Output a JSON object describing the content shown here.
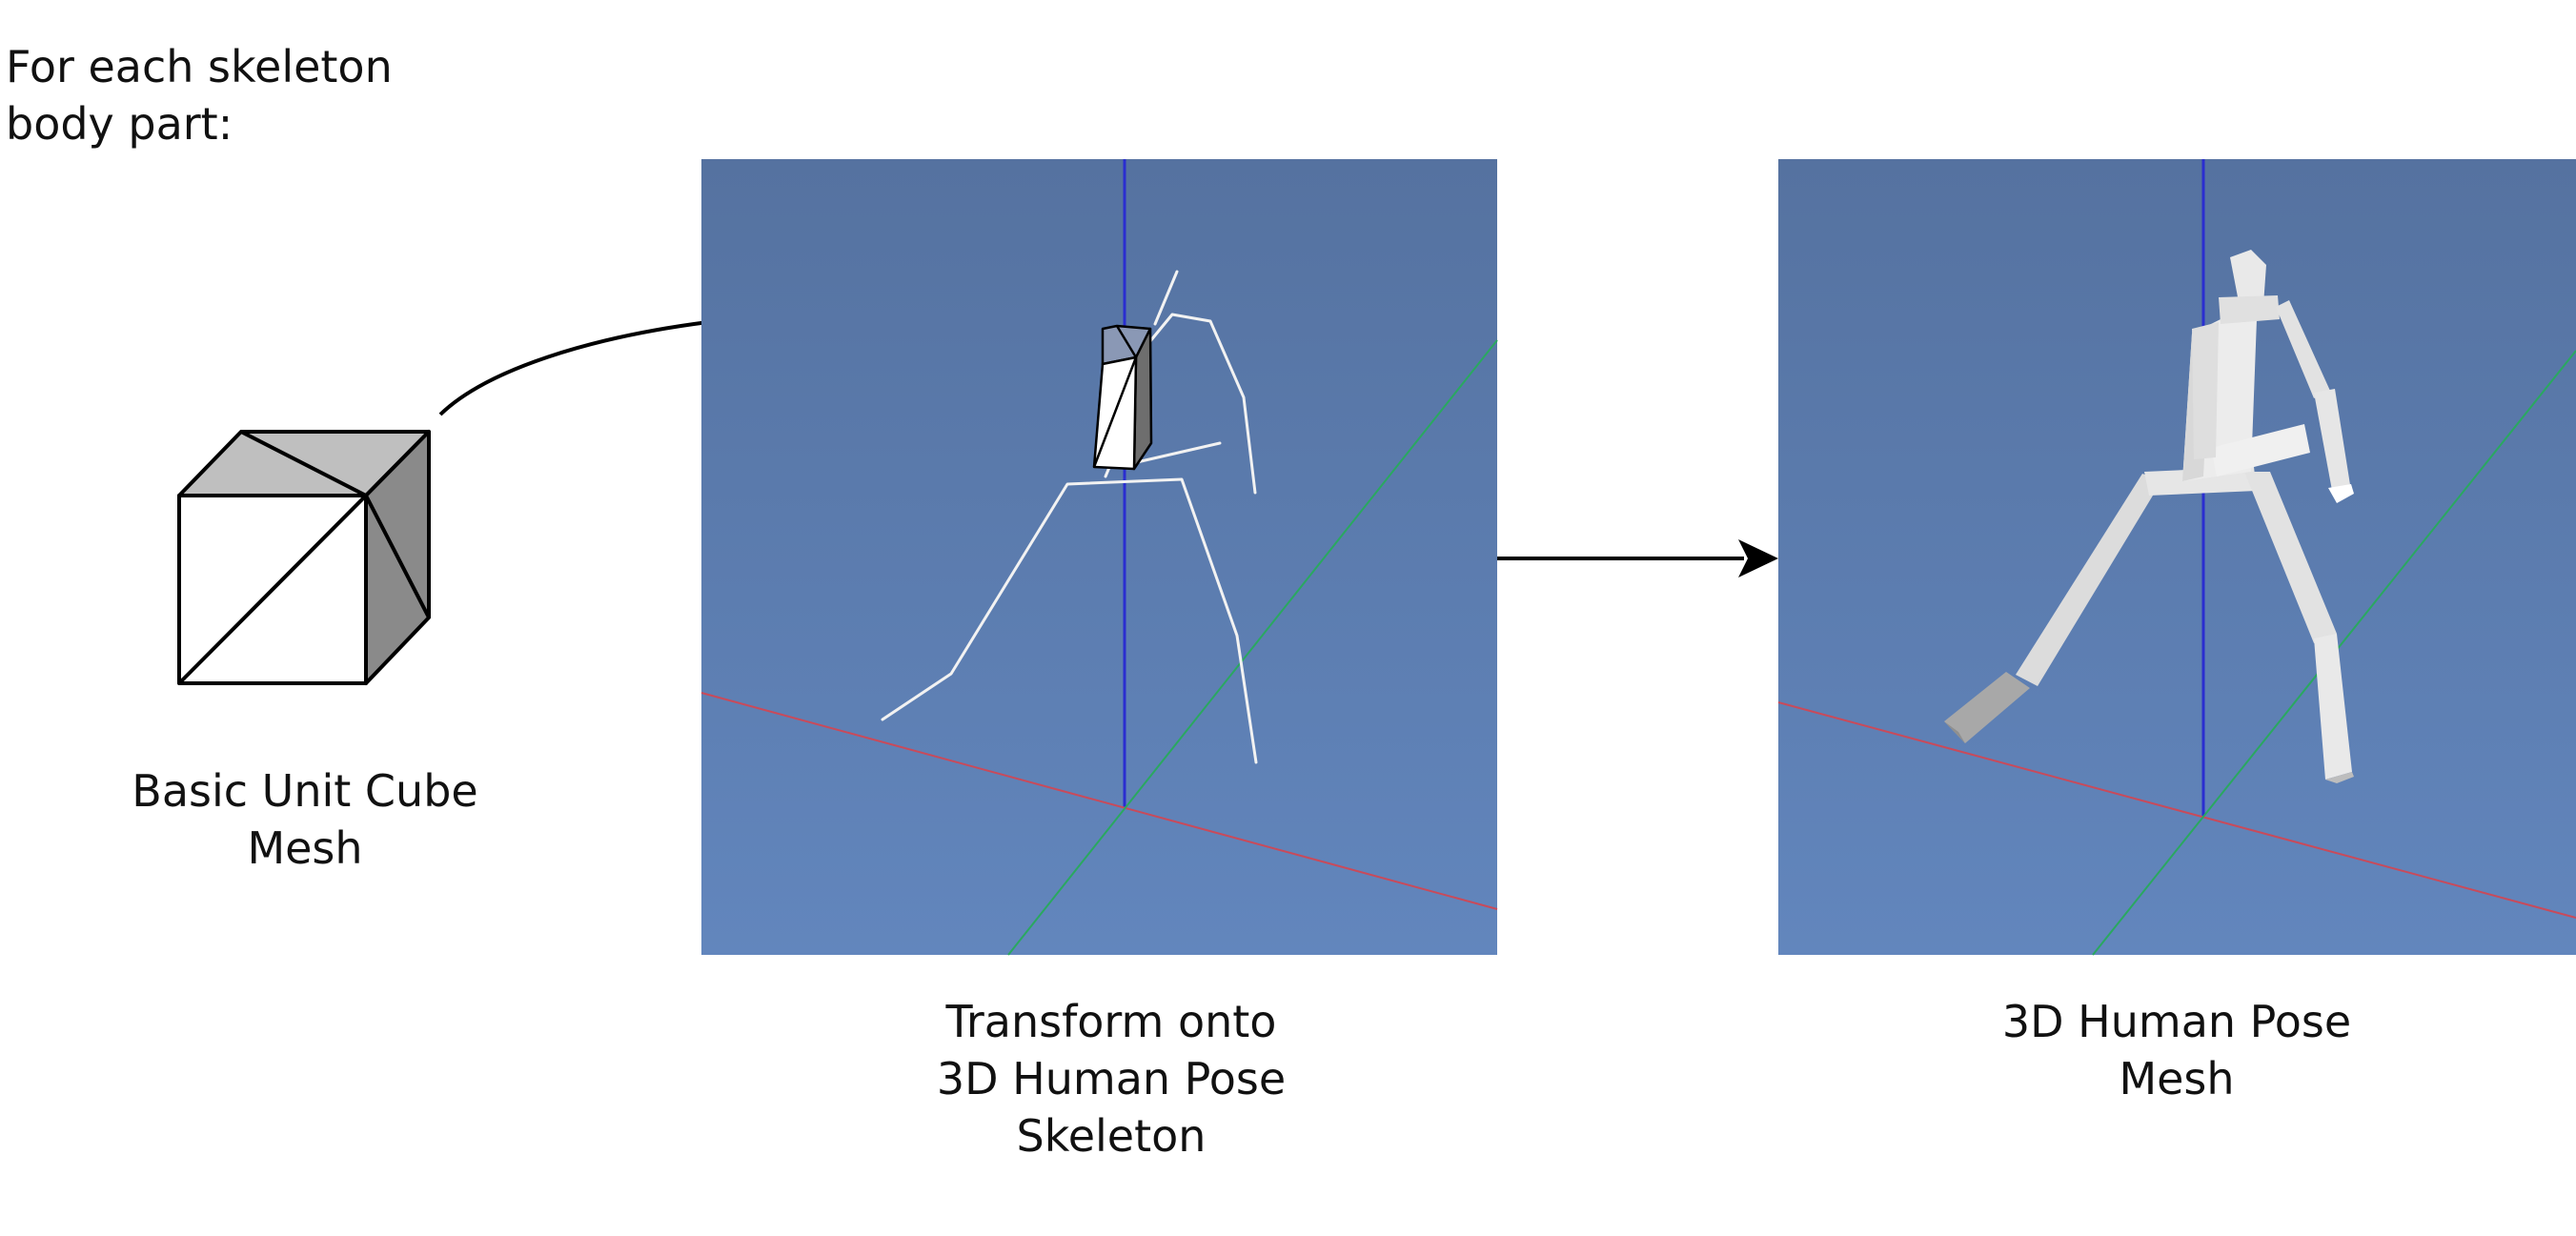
{
  "intro": {
    "lines": [
      "For each skeleton",
      "body part:"
    ]
  },
  "captions": {
    "cube": [
      "Basic Unit Cube",
      "Mesh"
    ],
    "skeleton": [
      "Transform onto",
      "3D Human Pose",
      "Skeleton"
    ],
    "mesh": [
      "3D Human Pose",
      "Mesh"
    ]
  },
  "colors": {
    "panel_top": "#5572a0",
    "panel_bottom": "#6286bd",
    "axis_vertical": "#2a2ed0",
    "axis_x": "#c94a5a",
    "axis_z": "#2aa860",
    "skeleton_line": "#f2f2f2",
    "limb_light": "#e9e9e9",
    "limb_mid": "#cfcfcf",
    "limb_dark": "#a8a8a8",
    "cube_front": "#ffffff",
    "cube_top": "#bfbfbf",
    "cube_side": "#8a8a8a",
    "outline": "#000000"
  }
}
